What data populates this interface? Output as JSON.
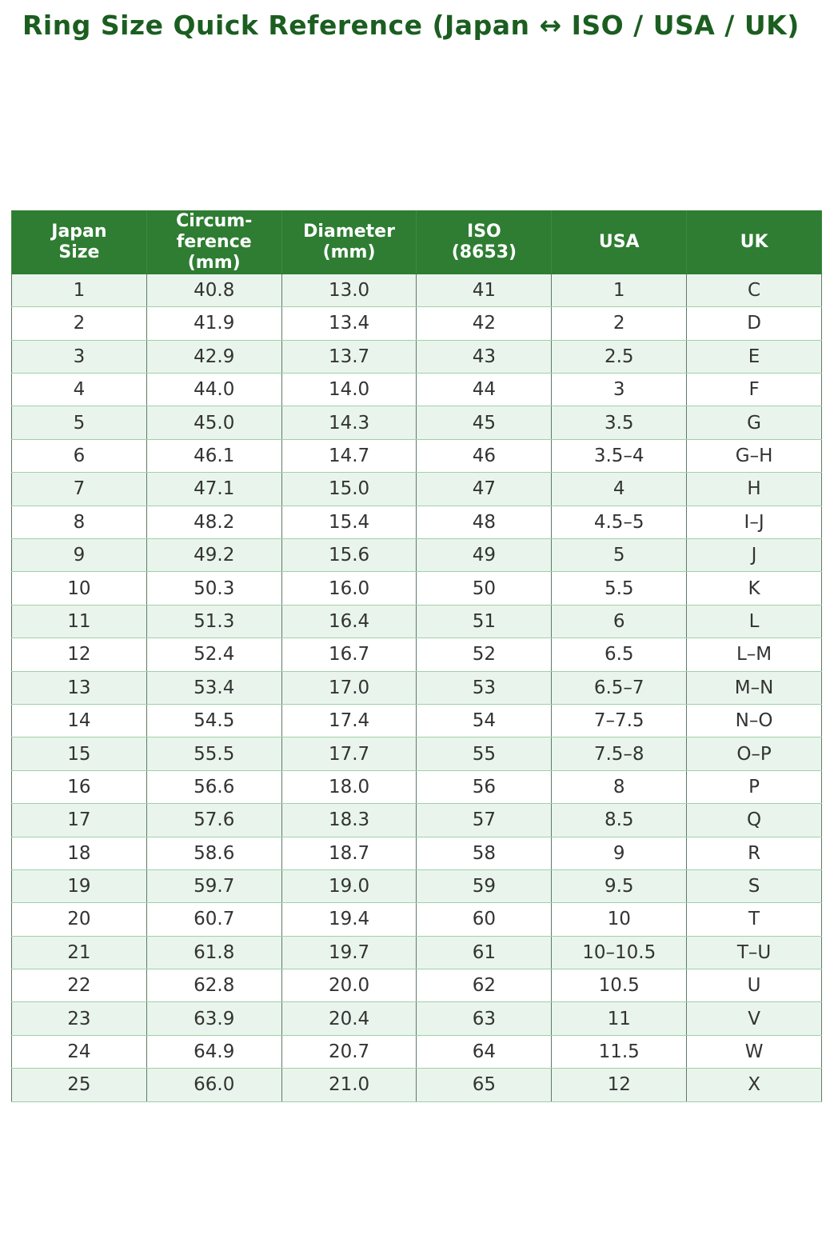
{
  "page": {
    "title": "Ring Size Quick Reference (Japan ↔ ISO / USA / UK)"
  },
  "colors": {
    "header_bg": "#2e7d32",
    "header_text": "#ffffff",
    "row_alt_bg": "#e9f5ec",
    "row_bg": "#ffffff",
    "title_color": "#1b5e20",
    "cell_text": "#333333"
  },
  "chart_data": {
    "type": "table",
    "title": "Ring Size Quick Reference (Japan ↔ ISO / USA / UK)",
    "columns": [
      "Japan\nSize",
      "Circum-\nference\n(mm)",
      "Diameter\n(mm)",
      "ISO\n(8653)",
      "USA",
      "UK"
    ],
    "column_keys": [
      "japan_size",
      "circumference_mm",
      "diameter_mm",
      "iso_8653",
      "usa",
      "uk"
    ],
    "rows": [
      [
        "1",
        "40.8",
        "13.0",
        "41",
        "1",
        "C"
      ],
      [
        "2",
        "41.9",
        "13.4",
        "42",
        "2",
        "D"
      ],
      [
        "3",
        "42.9",
        "13.7",
        "43",
        "2.5",
        "E"
      ],
      [
        "4",
        "44.0",
        "14.0",
        "44",
        "3",
        "F"
      ],
      [
        "5",
        "45.0",
        "14.3",
        "45",
        "3.5",
        "G"
      ],
      [
        "6",
        "46.1",
        "14.7",
        "46",
        "3.5–4",
        "G–H"
      ],
      [
        "7",
        "47.1",
        "15.0",
        "47",
        "4",
        "H"
      ],
      [
        "8",
        "48.2",
        "15.4",
        "48",
        "4.5–5",
        "I–J"
      ],
      [
        "9",
        "49.2",
        "15.6",
        "49",
        "5",
        "J"
      ],
      [
        "10",
        "50.3",
        "16.0",
        "50",
        "5.5",
        "K"
      ],
      [
        "11",
        "51.3",
        "16.4",
        "51",
        "6",
        "L"
      ],
      [
        "12",
        "52.4",
        "16.7",
        "52",
        "6.5",
        "L–M"
      ],
      [
        "13",
        "53.4",
        "17.0",
        "53",
        "6.5–7",
        "M–N"
      ],
      [
        "14",
        "54.5",
        "17.4",
        "54",
        "7–7.5",
        "N–O"
      ],
      [
        "15",
        "55.5",
        "17.7",
        "55",
        "7.5–8",
        "O–P"
      ],
      [
        "16",
        "56.6",
        "18.0",
        "56",
        "8",
        "P"
      ],
      [
        "17",
        "57.6",
        "18.3",
        "57",
        "8.5",
        "Q"
      ],
      [
        "18",
        "58.6",
        "18.7",
        "58",
        "9",
        "R"
      ],
      [
        "19",
        "59.7",
        "19.0",
        "59",
        "9.5",
        "S"
      ],
      [
        "20",
        "60.7",
        "19.4",
        "60",
        "10",
        "T"
      ],
      [
        "21",
        "61.8",
        "19.7",
        "61",
        "10–10.5",
        "T–U"
      ],
      [
        "22",
        "62.8",
        "20.0",
        "62",
        "10.5",
        "U"
      ],
      [
        "23",
        "63.9",
        "20.4",
        "63",
        "11",
        "V"
      ],
      [
        "24",
        "64.9",
        "20.7",
        "64",
        "11.5",
        "W"
      ],
      [
        "25",
        "66.0",
        "21.0",
        "65",
        "12",
        "X"
      ]
    ]
  }
}
